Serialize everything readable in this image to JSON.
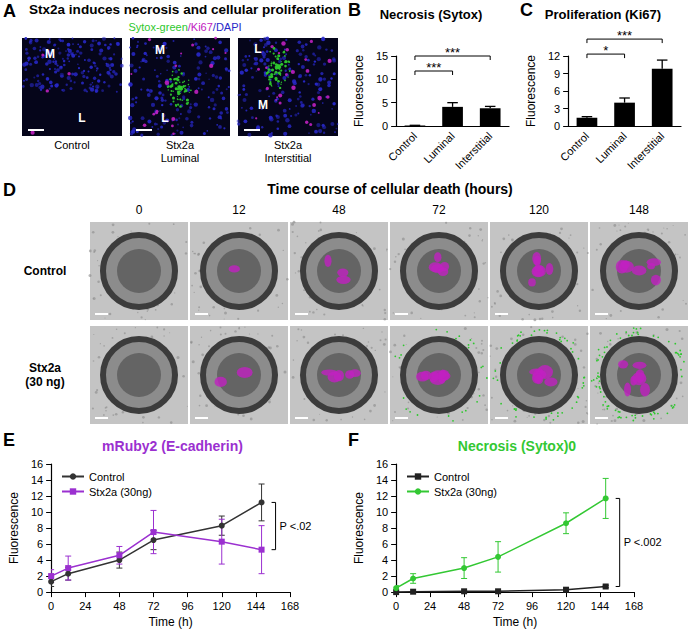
{
  "panel_a": {
    "panel": "A",
    "title": "Stx2a induces necrosis and cellular proliferation",
    "stains": [
      {
        "text": "Sytox-green",
        "color": "#2ec82e"
      },
      {
        "text": "/Ki67",
        "color": "#c020c0"
      },
      {
        "text": "/DAPI",
        "color": "#2828c8"
      }
    ],
    "images": [
      {
        "label": [
          "Control"
        ],
        "regions": [
          "M",
          "L"
        ]
      },
      {
        "label": [
          "Stx2a",
          "Luminal"
        ],
        "regions": [
          "M",
          "L"
        ]
      },
      {
        "label": [
          "Stx2a",
          "Interstitial"
        ],
        "regions": [
          "L",
          "M"
        ]
      }
    ]
  },
  "panel_d": {
    "panel": "D",
    "title": "Time course of cellular death (hours)",
    "times": [
      0,
      12,
      48,
      72,
      120,
      148
    ],
    "rows": [
      [
        "Control"
      ],
      [
        "Stx2a",
        "(30 ng)"
      ]
    ]
  },
  "chart_data": [
    {
      "panel": "B",
      "type": "bar",
      "title": "Necrosis (Sytox)",
      "ylabel": "Fluorescence",
      "categories": [
        "Control",
        "Luminal",
        "Interstitial"
      ],
      "values": [
        0.1,
        4.1,
        3.8
      ],
      "errors": [
        0.05,
        0.9,
        0.4
      ],
      "color": "#000000",
      "ylim": [
        0,
        15
      ],
      "yticks": [
        0,
        5,
        10,
        15
      ],
      "grid": false,
      "annotations": [
        {
          "text": "***",
          "from": "Control",
          "to": "Luminal"
        },
        {
          "text": "***",
          "from": "Control",
          "to": "Interstitial"
        }
      ]
    },
    {
      "panel": "C",
      "type": "bar",
      "title": "Proliferation (Ki67)",
      "ylabel": "Fluorescence",
      "categories": [
        "Control",
        "Luminal",
        "Interstitial"
      ],
      "values": [
        1.4,
        4.0,
        9.8
      ],
      "errors": [
        0.2,
        0.8,
        1.5
      ],
      "color": "#000000",
      "ylim": [
        0,
        12
      ],
      "yticks": [
        0,
        3,
        6,
        9,
        12
      ],
      "grid": false,
      "annotations": [
        {
          "text": "*",
          "from": "Control",
          "to": "Luminal"
        },
        {
          "text": "***",
          "from": "Control",
          "to": "Interstitial"
        }
      ]
    },
    {
      "panel": "E",
      "type": "line",
      "title": "mRuby2 (E-cadherin)",
      "xlabel": "Time (h)",
      "ylabel": "Fluorescence",
      "x": [
        0,
        12,
        48,
        72,
        120,
        148
      ],
      "series": [
        {
          "name": "Control",
          "color": "#333333",
          "marker": "circle",
          "values": [
            1.3,
            2.3,
            4.0,
            6.5,
            8.3,
            11.2
          ],
          "errors": [
            0.6,
            0.8,
            1.0,
            1.2,
            1.2,
            2.3
          ]
        },
        {
          "name": "Stx2a (30ng)",
          "color": "#9b30d0",
          "marker": "square",
          "values": [
            2.0,
            3.0,
            4.6,
            7.5,
            6.3,
            5.3
          ],
          "errors": [
            0.8,
            1.5,
            1.1,
            2.7,
            2.8,
            3.0
          ]
        }
      ],
      "xlim": [
        0,
        168
      ],
      "xticks": [
        0,
        24,
        48,
        72,
        96,
        120,
        144,
        168
      ],
      "ylim": [
        0,
        16
      ],
      "yticks": [
        0,
        2,
        4,
        6,
        8,
        10,
        12,
        14,
        16
      ],
      "grid": false,
      "legend": "upper left",
      "annotations": [
        {
          "text": "P <.02"
        }
      ]
    },
    {
      "panel": "F",
      "type": "line",
      "title": "Necrosis (Sytox)0",
      "xlabel": "Time (h)",
      "ylabel": "Fluorescence",
      "x": [
        0,
        12,
        48,
        72,
        120,
        148
      ],
      "series": [
        {
          "name": "Control",
          "color": "#222222",
          "marker": "square",
          "values": [
            0,
            0.05,
            0.1,
            0.1,
            0.3,
            0.7
          ],
          "errors": [
            0,
            0,
            0,
            0,
            0.1,
            0.15
          ]
        },
        {
          "name": "Stx2a (30ng)",
          "color": "#33c833",
          "marker": "circle",
          "values": [
            0.5,
            1.7,
            3.0,
            4.4,
            8.6,
            11.7
          ],
          "errors": [
            0.3,
            0.6,
            1.3,
            1.9,
            1.3,
            2.5
          ]
        }
      ],
      "xlim": [
        0,
        168
      ],
      "xticks": [
        0,
        24,
        48,
        72,
        96,
        120,
        144,
        168
      ],
      "ylim": [
        0,
        16
      ],
      "yticks": [
        0,
        2,
        4,
        6,
        8,
        10,
        12,
        14,
        16
      ],
      "grid": false,
      "legend": "upper left",
      "annotations": [
        {
          "text": "P <.002"
        }
      ]
    }
  ]
}
